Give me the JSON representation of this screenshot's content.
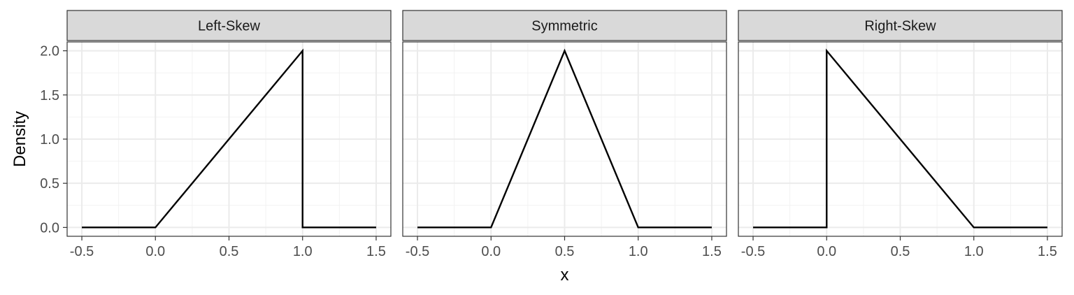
{
  "chart_data": {
    "type": "line",
    "facets": [
      {
        "strip_label": "Left-Skew",
        "x": [
          -0.5,
          0.0,
          1.0,
          1.0,
          1.5
        ],
        "y": [
          0,
          0,
          2,
          0,
          0
        ]
      },
      {
        "strip_label": "Symmetric",
        "x": [
          -0.5,
          0.0,
          0.5,
          1.0,
          1.5
        ],
        "y": [
          0,
          0,
          2,
          0,
          0
        ]
      },
      {
        "strip_label": "Right-Skew",
        "x": [
          -0.5,
          0.0,
          0.0,
          1.0,
          1.5
        ],
        "y": [
          0,
          0,
          2,
          0,
          0
        ]
      }
    ],
    "xlabel": "x",
    "ylabel": "Density",
    "xlim": [
      -0.6,
      1.6
    ],
    "ylim": [
      -0.1,
      2.1
    ],
    "x_ticks": [
      "-0.5",
      "0.0",
      "0.5",
      "1.0",
      "1.5"
    ],
    "x_tick_values": [
      -0.5,
      0.0,
      0.5,
      1.0,
      1.5
    ],
    "y_ticks": [
      "0.0",
      "0.5",
      "1.0",
      "1.5",
      "2.0"
    ],
    "y_tick_values": [
      0.0,
      0.5,
      1.0,
      1.5,
      2.0
    ],
    "grid": true,
    "line_color": "#000000",
    "strip_fill": "#d9d9d9",
    "panel_border": "#333333",
    "grid_major_color": "#ebebeb"
  }
}
